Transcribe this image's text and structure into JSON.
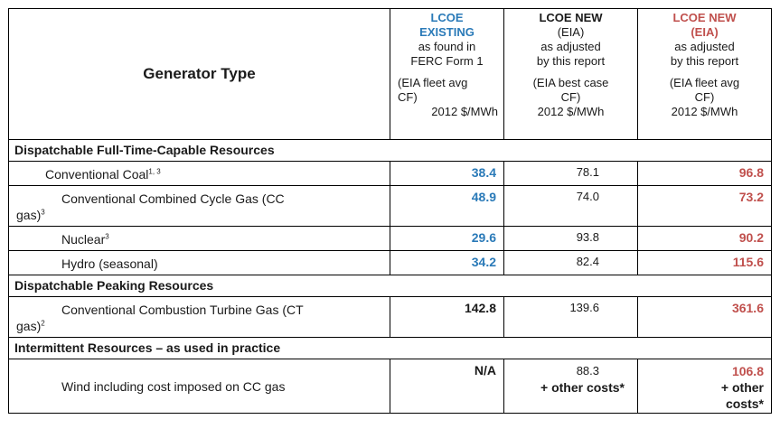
{
  "header": {
    "generator_type": "Generator Type",
    "col_existing": {
      "title1": "LCOE",
      "title2": "EXISTING",
      "line1": "as found in",
      "line2": "FERC Form 1",
      "basis1": "(EIA fleet avg",
      "basis2": "CF)",
      "unit": "2012 $/MWh"
    },
    "col_new_eia": {
      "title1": "LCOE NEW",
      "title2": "(EIA)",
      "line1": "as adjusted",
      "line2": "by this report",
      "basis1": "(EIA best case",
      "basis2": "CF)",
      "unit": "2012 $/MWh"
    },
    "col_new_adj": {
      "title1": "LCOE NEW",
      "title2": "(EIA)",
      "line1": "as adjusted",
      "line2": "by this report",
      "basis1": "(EIA fleet avg",
      "basis2": "CF)",
      "unit": "2012 $/MWh"
    }
  },
  "sections": {
    "s1": "Dispatchable Full-Time-Capable Resources",
    "s2": "Dispatchable Peaking Resources",
    "s3": "Intermittent Resources  – as used in practice"
  },
  "rows": {
    "coal": {
      "label": "Conventional Coal",
      "sup": "1, 3",
      "existing": "38.4",
      "new_eia": "78.1",
      "new_adj": "96.8"
    },
    "ccgas": {
      "label_a": "Conventional Combined Cycle Gas (CC",
      "label_b": "gas)",
      "sup": "3",
      "existing": "48.9",
      "new_eia": "74.0",
      "new_adj": "73.2"
    },
    "nuclear": {
      "label": "Nuclear",
      "sup": "3",
      "existing": "29.6",
      "new_eia": "93.8",
      "new_adj": "90.2"
    },
    "hydro": {
      "label": "Hydro (seasonal)",
      "existing": "34.2",
      "new_eia": "82.4",
      "new_adj": "115.6"
    },
    "ctgas": {
      "label_a": "Conventional Combustion Turbine Gas (CT",
      "label_b": "gas)",
      "sup": "2",
      "existing": "142.8",
      "new_eia": "139.6",
      "new_adj": "361.6"
    },
    "wind": {
      "label": "Wind including cost imposed on CC gas",
      "existing": "N/A",
      "new_eia": "88.3",
      "new_eia_note": "+ other costs*",
      "new_adj": "106.8",
      "new_adj_note1": "+ other",
      "new_adj_note2": "costs*"
    }
  }
}
